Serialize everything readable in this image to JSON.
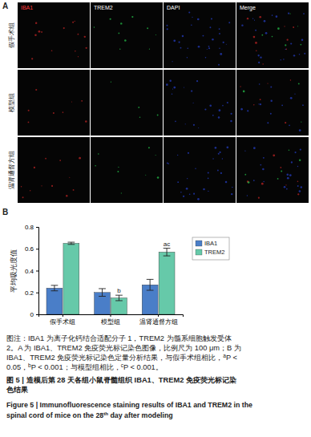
{
  "panel_a": {
    "label": "A",
    "columns": [
      "IBA1",
      "TREM2",
      "DAPI",
      "Merge"
    ],
    "column_colors": [
      "#ff3b3b",
      "#ffffff",
      "#ffffff",
      "#ffffff"
    ],
    "rows": [
      "假手术组",
      "模型组",
      "温肾通督方组"
    ]
  },
  "panel_b": {
    "label": "B"
  },
  "chart_data": {
    "type": "bar",
    "categories": [
      "假手术组",
      "模型组",
      "温肾通督方组"
    ],
    "ylabel": "平均吸光度值",
    "ylim": [
      0,
      0.8
    ],
    "yticks": [
      0,
      0.2,
      0.4,
      0.6,
      0.8
    ],
    "legend": "right",
    "series": [
      {
        "name": "IBA1",
        "color": "#4a7ec8",
        "values": [
          0.24,
          0.2,
          0.27
        ],
        "errors": [
          0.025,
          0.035,
          0.05
        ]
      },
      {
        "name": "TREM2",
        "color": "#66c9a9",
        "values": [
          0.65,
          0.15,
          0.57
        ],
        "errors": [
          0.01,
          0.025,
          0.035
        ],
        "significance": [
          null,
          "b",
          "ac"
        ]
      }
    ]
  },
  "caption": {
    "note": [
      [
        "图注：IBA1 为离子化钙结合适配分子 1，TREM2 为髓系细胞触发受体"
      ],
      [
        "2。A 为 IBA1、TREM2 免疫荧光标记染色图像，比例尺为 100 μm；B 为"
      ],
      [
        "IBA1、TREM2 免疫荧光标记染色定量分析结果，与假手术组相比，",
        {
          "sup": "a"
        },
        "P <"
      ],
      [
        "0.05，",
        {
          "sup": "b"
        },
        "P < 0.001；与模型组相比，",
        {
          "sup": "c"
        },
        "P < 0.001。"
      ]
    ],
    "title_zh": [
      [
        "图 5 | 造模后第 28 天各组小鼠脊髓组织 IBA1、TREM2 免疫荧光标记染"
      ],
      [
        "色结果"
      ]
    ],
    "title_en": [
      [
        "Figure 5 | Immunofluorescence staining results of IBA1 and TREM2 in the"
      ],
      [
        "spinal cord of mice on the 28",
        {
          "sup": "th"
        },
        " day after modeling"
      ]
    ]
  }
}
